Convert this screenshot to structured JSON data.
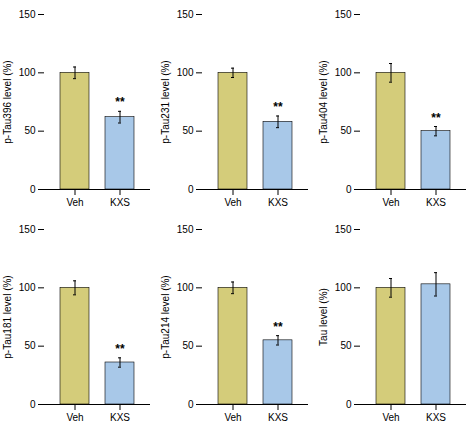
{
  "chart_data": [
    {
      "type": "bar",
      "ylabel": "p-Tau396 level (%)",
      "categories": [
        "Veh",
        "KXS"
      ],
      "values": [
        100,
        62
      ],
      "errors": [
        5,
        5
      ],
      "colors": [
        "#d4cc7a",
        "#a8c8e8"
      ],
      "ylim": [
        0,
        150
      ],
      "yticks": [
        0,
        50,
        100,
        150
      ],
      "annotations": [
        {
          "text": "**",
          "category": "KXS"
        }
      ]
    },
    {
      "type": "bar",
      "ylabel": "p-Tau231 level (%)",
      "categories": [
        "Veh",
        "KXS"
      ],
      "values": [
        100,
        58
      ],
      "errors": [
        4,
        5
      ],
      "colors": [
        "#d4cc7a",
        "#a8c8e8"
      ],
      "ylim": [
        0,
        150
      ],
      "yticks": [
        0,
        50,
        100,
        150
      ],
      "annotations": [
        {
          "text": "**",
          "category": "KXS"
        }
      ]
    },
    {
      "type": "bar",
      "ylabel": "p-Tau404 level (%)",
      "categories": [
        "Veh",
        "KXS"
      ],
      "values": [
        100,
        50
      ],
      "errors": [
        8,
        4
      ],
      "colors": [
        "#d4cc7a",
        "#a8c8e8"
      ],
      "ylim": [
        0,
        150
      ],
      "yticks": [
        0,
        50,
        100,
        150
      ],
      "annotations": [
        {
          "text": "**",
          "category": "KXS"
        }
      ]
    },
    {
      "type": "bar",
      "ylabel": "p-Tau181 level (%)",
      "categories": [
        "Veh",
        "KXS"
      ],
      "values": [
        100,
        36
      ],
      "errors": [
        6,
        4
      ],
      "colors": [
        "#d4cc7a",
        "#a8c8e8"
      ],
      "ylim": [
        0,
        150
      ],
      "yticks": [
        0,
        50,
        100,
        150
      ],
      "annotations": [
        {
          "text": "**",
          "category": "KXS"
        }
      ]
    },
    {
      "type": "bar",
      "ylabel": "p-Tau214 level (%)",
      "categories": [
        "Veh",
        "KXS"
      ],
      "values": [
        100,
        55
      ],
      "errors": [
        5,
        4
      ],
      "colors": [
        "#d4cc7a",
        "#a8c8e8"
      ],
      "ylim": [
        0,
        150
      ],
      "yticks": [
        0,
        50,
        100,
        150
      ],
      "annotations": [
        {
          "text": "**",
          "category": "KXS"
        }
      ]
    },
    {
      "type": "bar",
      "ylabel": "Tau level (%)",
      "categories": [
        "Veh",
        "KXS"
      ],
      "values": [
        100,
        103
      ],
      "errors": [
        8,
        10
      ],
      "colors": [
        "#d4cc7a",
        "#a8c8e8"
      ],
      "ylim": [
        0,
        150
      ],
      "yticks": [
        0,
        50,
        100,
        150
      ]
    }
  ]
}
